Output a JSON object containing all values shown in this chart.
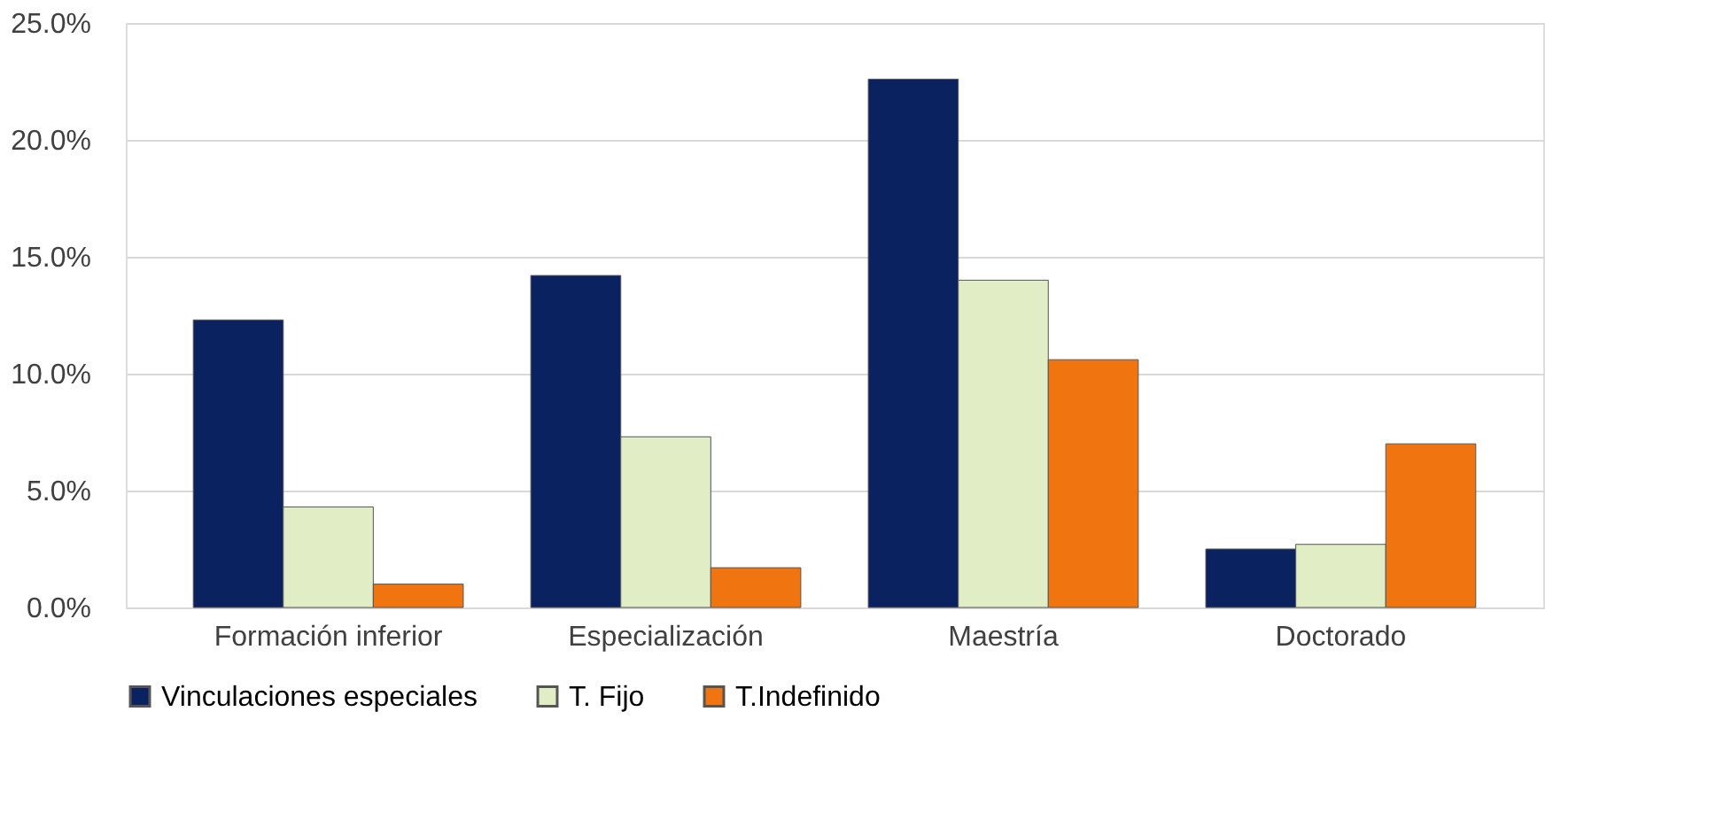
{
  "chart_data": {
    "type": "bar",
    "categories": [
      "Formación inferior",
      "Especialización",
      "Maestría",
      "Doctorado"
    ],
    "series": [
      {
        "name": "Vinculaciones especiales",
        "color": "#0a2260",
        "values": [
          12.3,
          14.2,
          22.6,
          2.5
        ]
      },
      {
        "name": "T. Fijo",
        "color": "#e0edc5",
        "values": [
          4.3,
          7.3,
          14.0,
          2.7
        ]
      },
      {
        "name": "T.Indefinido",
        "color": "#f07510",
        "values": [
          1.0,
          1.7,
          10.6,
          7.0
        ]
      }
    ],
    "ylim": [
      0,
      25
    ],
    "yticks": [
      {
        "value": 0,
        "label": "0.0%"
      },
      {
        "value": 5,
        "label": "5.0%"
      },
      {
        "value": 10,
        "label": "10.0%"
      },
      {
        "value": 15,
        "label": "15.0%"
      },
      {
        "value": 20,
        "label": "20.0%"
      },
      {
        "value": 25,
        "label": "25.0%"
      }
    ],
    "grid": "y",
    "legend": "bottom"
  }
}
